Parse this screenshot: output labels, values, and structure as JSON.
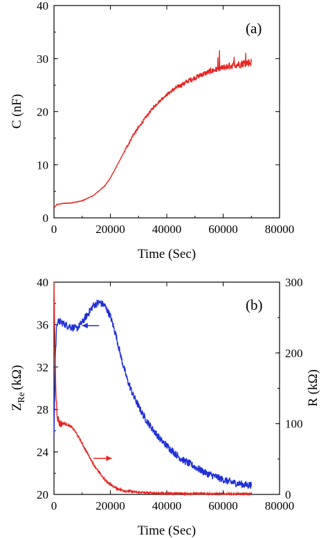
{
  "chart_data": [
    {
      "type": "line",
      "panel_label": "(a)",
      "xlabel": "Time (Sec)",
      "ylabel": "C (nF)",
      "xlim": [
        0,
        80000
      ],
      "ylim": [
        0,
        40
      ],
      "xticks": [
        "0",
        "20000",
        "40000",
        "60000",
        "80000"
      ],
      "yticks": [
        "0",
        "10",
        "20",
        "30",
        "40"
      ],
      "series": [
        {
          "color": "#e8231f",
          "axis": "left",
          "x": [
            0,
            1000,
            3000,
            6000,
            10000,
            14000,
            18000,
            20000,
            22000,
            24000,
            26000,
            28000,
            30000,
            32000,
            34000,
            36000,
            38000,
            40000,
            42000,
            44000,
            46000,
            48000,
            50000,
            52000,
            54000,
            56000,
            58000,
            60000,
            62000,
            64000,
            66000,
            68000,
            70000
          ],
          "y": [
            1.8,
            2.5,
            2.7,
            2.8,
            3.2,
            4.2,
            6.0,
            7.5,
            9.5,
            11.5,
            13.5,
            15.5,
            17.0,
            18.5,
            20.0,
            21.2,
            22.3,
            23.2,
            24.0,
            24.7,
            25.3,
            25.9,
            26.4,
            26.9,
            27.3,
            27.7,
            28.0,
            28.3,
            28.6,
            28.8,
            29.0,
            29.2,
            29.3
          ],
          "noise": 0.5
        }
      ]
    },
    {
      "type": "line",
      "panel_label": "(b)",
      "xlabel": "Time (Sec)",
      "ylabel": "Z",
      "ylabel_sub": "Re",
      "ylabel_unit": "(kΩ)",
      "y2label": "R (kΩ)",
      "xlim": [
        0,
        80000
      ],
      "ylim": [
        20,
        40
      ],
      "y2lim": [
        0,
        300
      ],
      "xticks": [
        "0",
        "20000",
        "40000",
        "60000",
        "80000"
      ],
      "yticks": [
        "20",
        "24",
        "28",
        "32",
        "36",
        "40"
      ],
      "y2ticks": [
        "0",
        "100",
        "200",
        "300"
      ],
      "series": [
        {
          "color": "#1f2fd6",
          "axis": "left",
          "x": [
            0,
            500,
            1000,
            2000,
            4000,
            6000,
            8000,
            10000,
            12000,
            14000,
            16000,
            18000,
            20000,
            22000,
            24000,
            26000,
            28000,
            30000,
            32000,
            34000,
            36000,
            38000,
            40000,
            42000,
            44000,
            46000,
            48000,
            50000,
            52000,
            54000,
            56000,
            58000,
            60000,
            62000,
            64000,
            66000,
            68000,
            70000
          ],
          "y": [
            25.5,
            33.0,
            36.2,
            36.3,
            36.0,
            35.8,
            35.6,
            36.2,
            37.0,
            37.8,
            38.1,
            37.8,
            36.8,
            35.0,
            32.7,
            30.8,
            29.4,
            28.3,
            27.3,
            26.5,
            25.8,
            25.1,
            24.6,
            24.1,
            23.6,
            23.2,
            22.9,
            22.6,
            22.3,
            22.0,
            21.8,
            21.6,
            21.4,
            21.2,
            21.1,
            21.0,
            20.9,
            20.9
          ],
          "noise": 0.35
        },
        {
          "color": "#e8231f",
          "axis": "right",
          "x": [
            0,
            300,
            700,
            1200,
            2000,
            3000,
            4000,
            5000,
            6000,
            7000,
            8000,
            9000,
            10000,
            12000,
            14000,
            16000,
            18000,
            20000,
            22000,
            25000,
            30000,
            35000,
            40000,
            50000,
            60000,
            70000
          ],
          "y": [
            300,
            220,
            140,
            110,
            100,
            100,
            100,
            98,
            96,
            92,
            86,
            79,
            72,
            57,
            43,
            31,
            21,
            14,
            9,
            5,
            3,
            2,
            1.5,
            1,
            0.5,
            0.5
          ],
          "noise": 1.5
        }
      ],
      "annotations": [
        {
          "type": "arrow",
          "color": "#1f2fd6",
          "direction": "left",
          "x": 16000,
          "y": 35.9,
          "length": 6000
        },
        {
          "type": "arrow",
          "color": "#e8231f",
          "direction": "right",
          "x": 14000,
          "y": 23.4,
          "length": 6500
        }
      ]
    }
  ]
}
